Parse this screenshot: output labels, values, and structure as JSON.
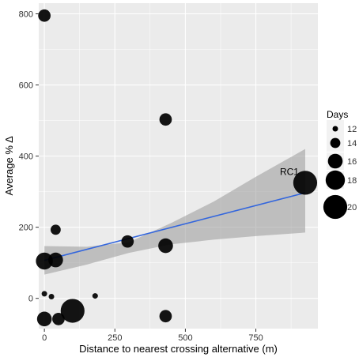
{
  "chart_data": {
    "type": "scatter",
    "xlabel": "Distance to nearest crossing alternative (m)",
    "ylabel": "Average % ∆",
    "xlim": [
      -20,
      970
    ],
    "ylim": [
      -85,
      830
    ],
    "x_ticks": [
      0,
      250,
      500,
      750
    ],
    "y_ticks": [
      0,
      200,
      400,
      600,
      800
    ],
    "grid": true,
    "legend": {
      "title": "Days",
      "position": "right",
      "sizes": [
        12,
        14,
        16,
        18,
        20
      ],
      "labels": [
        "12",
        "14",
        "16",
        "18",
        "20"
      ]
    },
    "points": [
      {
        "x": 0,
        "y": 795,
        "days": 15
      },
      {
        "x": 430,
        "y": 503,
        "days": 15
      },
      {
        "x": 925,
        "y": 325,
        "days": 20
      },
      {
        "x": 40,
        "y": 193,
        "days": 14
      },
      {
        "x": 295,
        "y": 160,
        "days": 15
      },
      {
        "x": 430,
        "y": 148,
        "days": 16
      },
      {
        "x": 0,
        "y": 105,
        "days": 17
      },
      {
        "x": 40,
        "y": 108,
        "days": 16
      },
      {
        "x": 0,
        "y": 13,
        "days": 12
      },
      {
        "x": 25,
        "y": 5,
        "days": 12
      },
      {
        "x": 180,
        "y": 7,
        "days": 12
      },
      {
        "x": 0,
        "y": -58,
        "days": 16
      },
      {
        "x": 50,
        "y": -58,
        "days": 15
      },
      {
        "x": 100,
        "y": -35,
        "days": 20
      },
      {
        "x": 430,
        "y": -50,
        "days": 15
      }
    ],
    "trend_line": {
      "x": [
        0,
        925
      ],
      "y": [
        107,
        297
      ],
      "color": "#3366dd"
    },
    "confidence_band": {
      "x": [
        0,
        150,
        300,
        450,
        600,
        750,
        925
      ],
      "lower": [
        67,
        95,
        128,
        152,
        165,
        175,
        185
      ],
      "upper": [
        147,
        145,
        158,
        212,
        272,
        342,
        420
      ]
    },
    "annotations": [
      {
        "text": "RC1",
        "x": 925,
        "y": 325
      }
    ],
    "colors": {
      "panel": "#ebebeb",
      "grid": "#ffffff",
      "points": "#000000",
      "band": "#999999",
      "line": "#3366dd"
    }
  }
}
